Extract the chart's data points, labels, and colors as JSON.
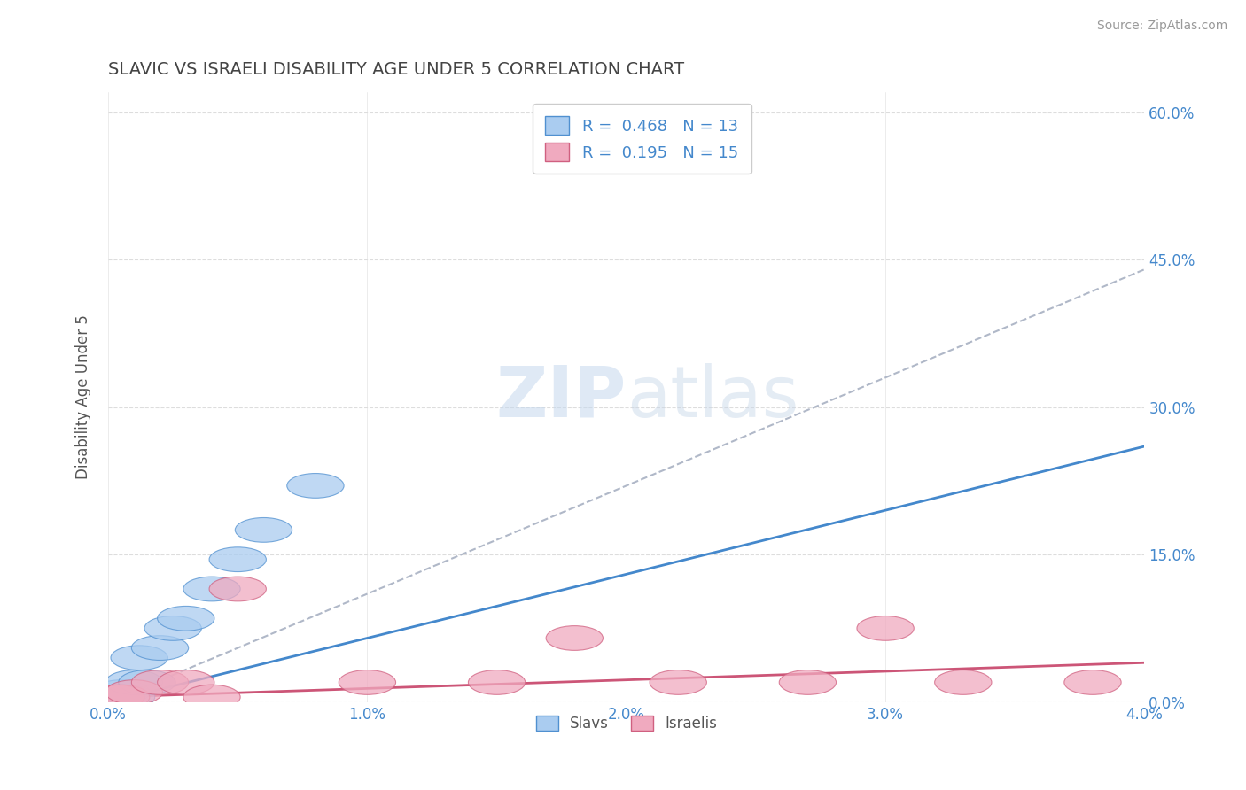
{
  "title": "SLAVIC VS ISRAELI DISABILITY AGE UNDER 5 CORRELATION CHART",
  "source": "Source: ZipAtlas.com",
  "ylabel": "Disability Age Under 5",
  "xlim": [
    0.0,
    0.04
  ],
  "ylim": [
    0.0,
    0.62
  ],
  "xticks": [
    0.0,
    0.01,
    0.02,
    0.03,
    0.04
  ],
  "xtick_labels": [
    "0.0%",
    "1.0%",
    "2.0%",
    "3.0%",
    "4.0%"
  ],
  "yticks_right": [
    0.0,
    0.15,
    0.3,
    0.45,
    0.6
  ],
  "ytick_labels_right": [
    "0.0%",
    "15.0%",
    "30.0%",
    "45.0%",
    "60.0%"
  ],
  "legend_R1": "0.468",
  "legend_N1": "13",
  "legend_R2": "0.195",
  "legend_N2": "15",
  "slavs_color": "#aaccf0",
  "slavs_edge_color": "#5090d0",
  "israelis_color": "#f0aabf",
  "israelis_edge_color": "#d06080",
  "slavs_line_color": "#4488cc",
  "israelis_line_color": "#cc5577",
  "dashed_line_color": "#b0b8c8",
  "slavs_x": [
    0.0003,
    0.0005,
    0.0007,
    0.001,
    0.0012,
    0.0015,
    0.002,
    0.0025,
    0.003,
    0.004,
    0.005,
    0.006,
    0.008
  ],
  "slavs_y": [
    0.005,
    0.01,
    0.005,
    0.02,
    0.045,
    0.02,
    0.055,
    0.075,
    0.085,
    0.115,
    0.145,
    0.175,
    0.22
  ],
  "israelis_x": [
    0.0003,
    0.0005,
    0.001,
    0.002,
    0.003,
    0.004,
    0.005,
    0.01,
    0.015,
    0.018,
    0.022,
    0.027,
    0.03,
    0.033,
    0.038
  ],
  "israelis_y": [
    0.005,
    0.005,
    0.01,
    0.02,
    0.02,
    0.005,
    0.115,
    0.02,
    0.02,
    0.065,
    0.02,
    0.02,
    0.075,
    0.02,
    0.02
  ],
  "slavs_trend": [
    0.0,
    0.04,
    0.0,
    0.26
  ],
  "israelis_trend": [
    0.0,
    0.04,
    0.005,
    0.04
  ],
  "dashed_line": [
    0.0,
    0.04,
    0.0,
    0.44
  ],
  "background_color": "#ffffff",
  "grid_color": "#dddddd",
  "title_color": "#444444",
  "axis_label_color": "#555555",
  "tick_color": "#4488cc",
  "watermark_color": "#ccddf5"
}
